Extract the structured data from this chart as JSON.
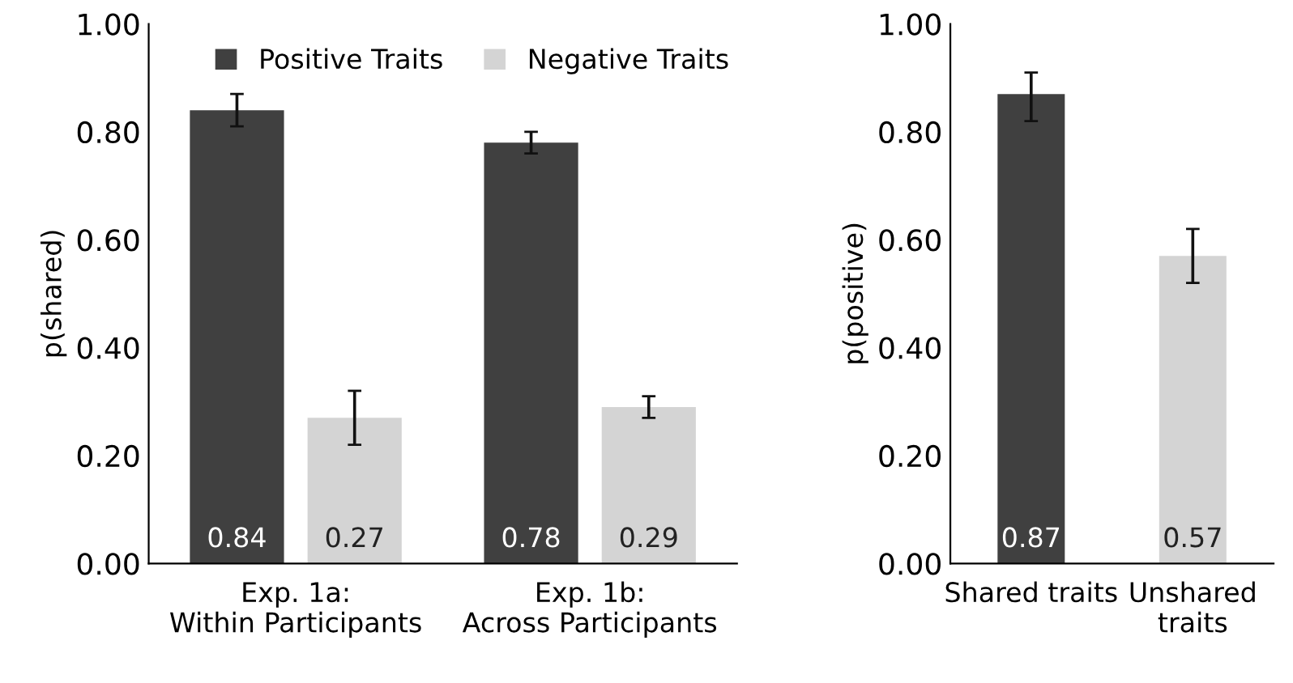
{
  "chart_data": [
    {
      "type": "bar",
      "ylabel": "p(shared)",
      "categories": [
        "Exp. 1a:\nWithin Participants",
        "Exp. 1b:\nAcross Participants"
      ],
      "series": [
        {
          "name": "Positive Traits",
          "color": "#404040",
          "values": [
            0.84,
            0.78
          ],
          "errors": [
            [
              0.81,
              0.87
            ],
            [
              0.76,
              0.8
            ]
          ],
          "value_labels": [
            "0.84",
            "0.78"
          ]
        },
        {
          "name": "Negative Traits",
          "color": "#d4d4d4",
          "values": [
            0.27,
            0.29
          ],
          "errors": [
            [
              0.22,
              0.32
            ],
            [
              0.27,
              0.31
            ]
          ],
          "value_labels": [
            "0.27",
            "0.29"
          ]
        }
      ],
      "ylim": [
        0,
        1
      ],
      "yticks": [
        {
          "value": 0,
          "label": "0.00"
        },
        {
          "value": 0.2,
          "label": "0.20"
        },
        {
          "value": 0.4,
          "label": "0.40"
        },
        {
          "value": 0.6,
          "label": "0.60"
        },
        {
          "value": 0.8,
          "label": "0.80"
        },
        {
          "value": 1,
          "label": "1.00"
        }
      ],
      "grid": false,
      "legend": "top"
    },
    {
      "type": "bar",
      "ylabel": "p(positive)",
      "categories": [
        "Shared traits",
        "Unshared\ntraits"
      ],
      "values": [
        0.87,
        0.57
      ],
      "colors": [
        "#404040",
        "#d4d4d4"
      ],
      "errors": [
        [
          0.82,
          0.91
        ],
        [
          0.52,
          0.62
        ]
      ],
      "value_labels": [
        "0.87",
        "0.57"
      ],
      "ylim": [
        0,
        1
      ],
      "yticks": [
        {
          "value": 0,
          "label": "0.00"
        },
        {
          "value": 0.2,
          "label": "0.20"
        },
        {
          "value": 0.4,
          "label": "0.40"
        },
        {
          "value": 0.6,
          "label": "0.60"
        },
        {
          "value": 0.8,
          "label": "0.80"
        },
        {
          "value": 1,
          "label": "1.00"
        }
      ],
      "grid": false
    }
  ]
}
